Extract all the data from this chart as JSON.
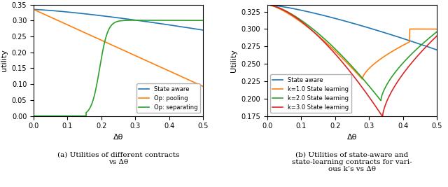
{
  "fig_width": 6.4,
  "fig_height": 2.67,
  "dpi": 100,
  "left_plot": {
    "xlabel": "Δθ",
    "ylabel": "utility",
    "xlim": [
      0.0,
      0.5
    ],
    "ylim": [
      0.0,
      0.35
    ],
    "yticks": [
      0.0,
      0.05,
      0.1,
      0.15,
      0.2,
      0.25,
      0.3,
      0.35
    ],
    "legend_labels": [
      "State aware",
      "Op: pooling",
      "Op: separating"
    ],
    "legend_colors": [
      "#1f77b4",
      "#ff7f0e",
      "#2ca02c"
    ],
    "caption_line1": "(a) Utilities of different contracts",
    "caption_line2": "vs Δθ"
  },
  "right_plot": {
    "xlabel": "Δθ",
    "ylabel": "Utility",
    "xlim": [
      0.0,
      0.5
    ],
    "ylim": [
      0.175,
      0.335
    ],
    "yticks": [
      0.175,
      0.2,
      0.225,
      0.25,
      0.275,
      0.3,
      0.325
    ],
    "legend_labels": [
      "State aware",
      "k=1.0 State learning",
      "k=2.0 State learning",
      "k=3.0 State learning"
    ],
    "legend_colors": [
      "#1f77b4",
      "#ff7f0e",
      "#2ca02c",
      "#d62728"
    ],
    "caption_line1": "(b) Utilities of state-aware and",
    "caption_line2": "state-learning contracts for vari-",
    "caption_line3": "ous k’s vs Δθ"
  }
}
